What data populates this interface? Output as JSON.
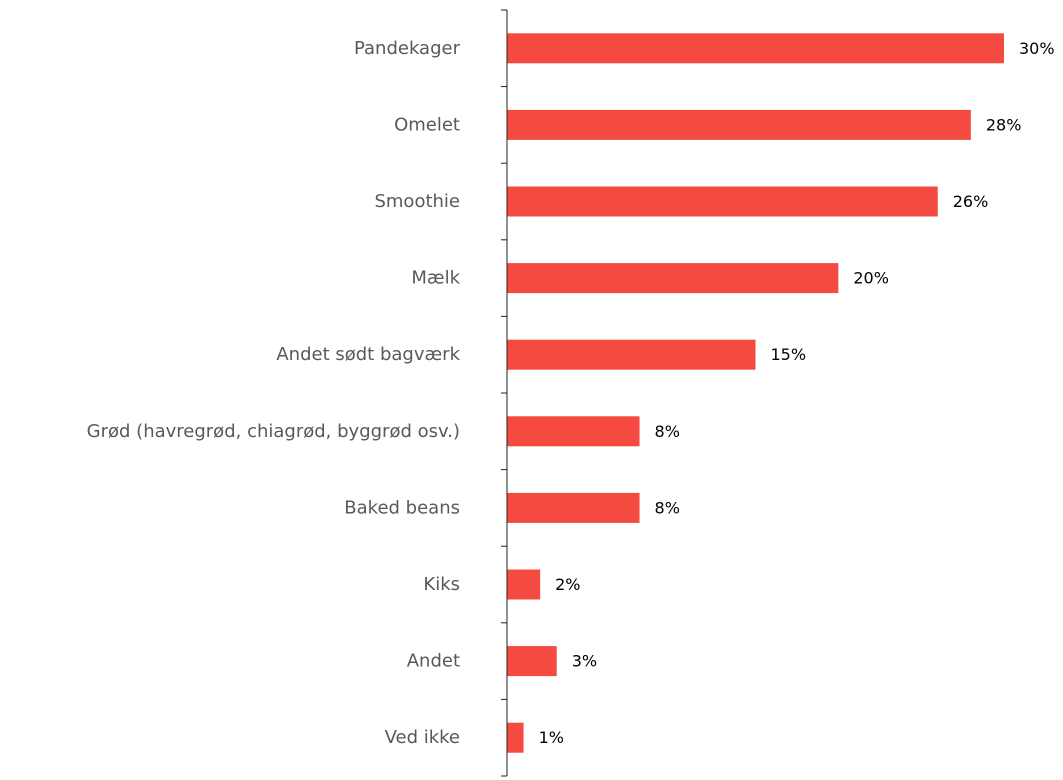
{
  "chart_data": {
    "type": "bar",
    "orientation": "horizontal",
    "categories": [
      "Pandekager",
      "Omelet",
      "Smoothie",
      "Mælk",
      "Andet sødt bagværk",
      "Grød (havregrød, chiagrød, byggrød osv.)",
      "Baked beans",
      "Kiks",
      "Andet",
      "Ved ikke"
    ],
    "values": [
      30,
      28,
      26,
      20,
      15,
      8,
      8,
      2,
      3,
      1
    ],
    "value_labels": [
      "30%",
      "28%",
      "26%",
      "20%",
      "15%",
      "8%",
      "8%",
      "2%",
      "3%",
      "1%"
    ],
    "unit": "%",
    "xlim": [
      0,
      30
    ],
    "title": "",
    "xlabel": "",
    "ylabel": "",
    "grid": false,
    "legend": "none",
    "colors": {
      "bar": "#f44a40",
      "category_text": "#595959",
      "value_text": "#000000",
      "axis": "#222222"
    }
  }
}
